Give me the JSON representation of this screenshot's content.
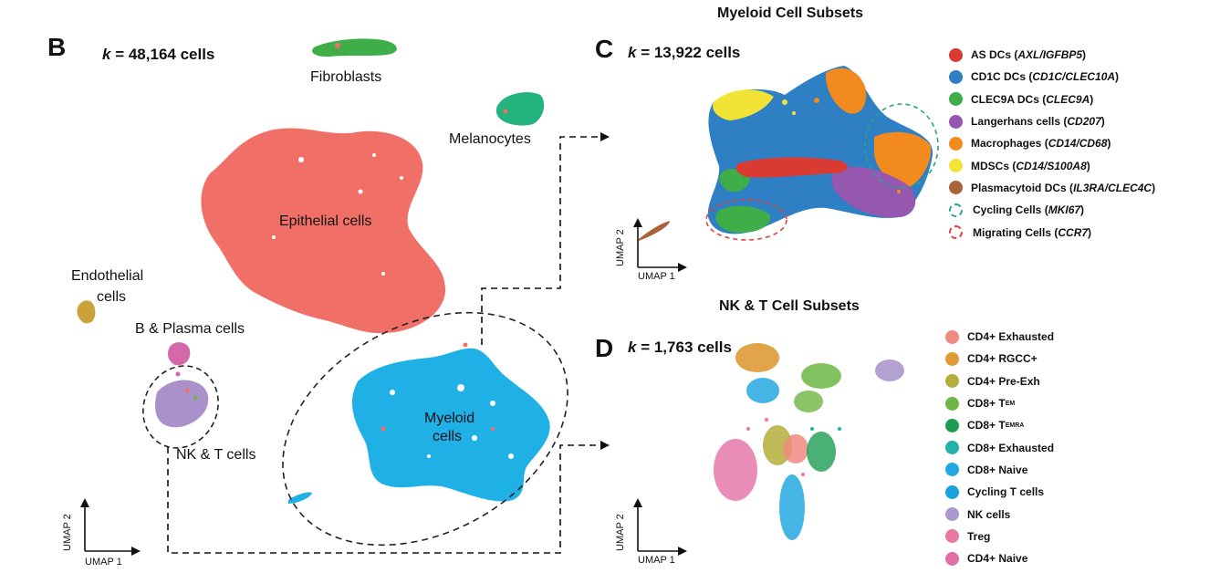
{
  "panel_b": {
    "letter": "B",
    "count": "= 48,164 cells",
    "clusters": {
      "fibroblasts": "Fibroblasts",
      "melanocytes": "Melanocytes",
      "epithelial": "Epithelial cells",
      "endothelial_1": "Endothelial",
      "endothelial_2": "cells",
      "b_plasma": "B & Plasma cells",
      "nk_t": "NK & T cells",
      "myeloid_1": "Myeloid",
      "myeloid_2": "cells"
    },
    "axis_x": "UMAP 1",
    "axis_y": "UMAP 2"
  },
  "panel_c": {
    "letter": "C",
    "title": "Myeloid Cell Subsets",
    "count": "= 13,922 cells",
    "axis_x": "UMAP 1",
    "axis_y": "UMAP 2",
    "legend": [
      {
        "name": "AS DCs",
        "marker": "AXL/IGFBP5",
        "color": "#d93a32",
        "style": "dot"
      },
      {
        "name": "CD1C DCs",
        "marker": "CD1C/CLEC10A",
        "color": "#2e7fc3",
        "style": "dot"
      },
      {
        "name": "CLEC9A DCs",
        "marker": "CLEC9A",
        "color": "#3fae49",
        "style": "dot"
      },
      {
        "name": "Langerhans cells",
        "marker": "CD207",
        "color": "#9657b0",
        "style": "dot"
      },
      {
        "name": "Macrophages",
        "marker": "CD14/CD68",
        "color": "#f28a1e",
        "style": "dot"
      },
      {
        "name": "MDSCs",
        "marker": "CD14/S100A8",
        "color": "#f3e334",
        "style": "dot"
      },
      {
        "name": "Plasmacytoid DCs",
        "marker": "IL3RA/CLEC4C",
        "color": "#a9623a",
        "style": "dot"
      },
      {
        "name": "Cycling Cells",
        "marker": "MKI67",
        "color": "#2aa585",
        "style": "ring"
      },
      {
        "name": "Migrating Cells",
        "marker": "CCR7",
        "color": "#e0413a",
        "style": "ring"
      }
    ]
  },
  "panel_d": {
    "letter": "D",
    "title": "NK & T Cell Subsets",
    "count": "= 1,763 cells",
    "axis_x": "UMAP 1",
    "axis_y": "UMAP 2",
    "legend": [
      {
        "name": "CD4+ Exhausted",
        "sub": "",
        "color": "#ee8a7f"
      },
      {
        "name": "CD4+ RGCC+",
        "sub": "",
        "color": "#de9a35"
      },
      {
        "name": "CD4+ Pre-Exh",
        "sub": "",
        "color": "#b5ad3a"
      },
      {
        "name": "CD8+ T",
        "sub": "EM",
        "color": "#6db644"
      },
      {
        "name": "CD8+ T",
        "sub": "EMRA",
        "color": "#1c9e52"
      },
      {
        "name": "CD8+ Exhausted",
        "sub": "",
        "color": "#22b3a7"
      },
      {
        "name": "CD8+ Naive",
        "sub": "",
        "color": "#24a8e0"
      },
      {
        "name": "Cycling T cells",
        "sub": "",
        "color": "#18a3dd"
      },
      {
        "name": "NK cells",
        "sub": "",
        "color": "#ab98cc"
      },
      {
        "name": "Treg",
        "sub": "",
        "color": "#e777a3"
      },
      {
        "name": "CD4+ Naive",
        "sub": "",
        "color": "#e46fa6"
      }
    ]
  },
  "k_symbol": "k"
}
